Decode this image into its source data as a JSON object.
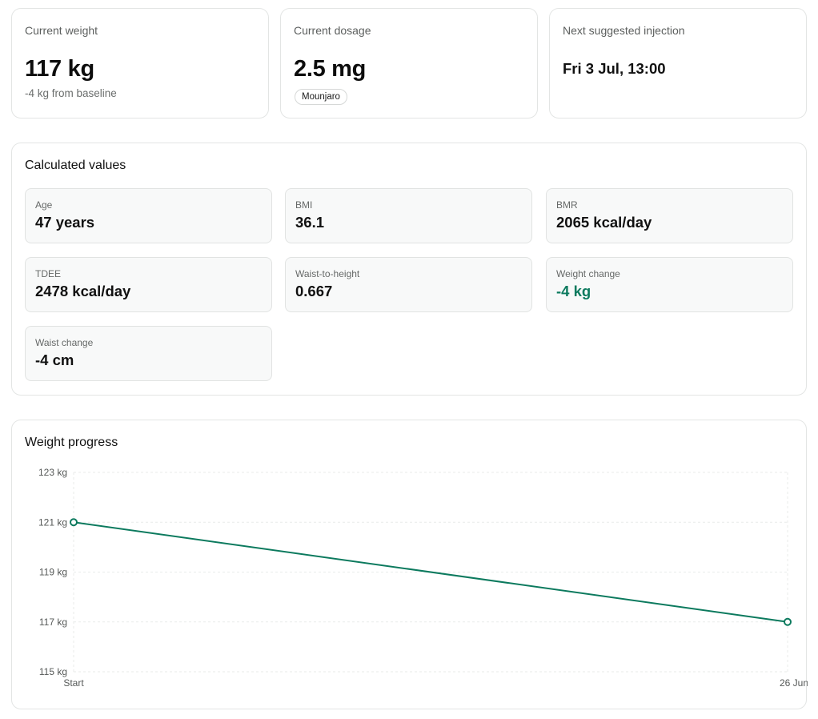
{
  "stats": {
    "weight": {
      "label": "Current weight",
      "value": "117 kg",
      "sub": "-4 kg from baseline"
    },
    "dosage": {
      "label": "Current dosage",
      "value": "2.5 mg",
      "badge": "Mounjaro"
    },
    "injection": {
      "label": "Next suggested injection",
      "value": "Fri 3 Jul, 13:00"
    }
  },
  "calculated": {
    "title": "Calculated values",
    "items": [
      {
        "label": "Age",
        "value": "47 years"
      },
      {
        "label": "BMI",
        "value": "36.1"
      },
      {
        "label": "BMR",
        "value": "2065 kcal/day"
      },
      {
        "label": "TDEE",
        "value": "2478 kcal/day"
      },
      {
        "label": "Waist-to-height",
        "value": "0.667"
      },
      {
        "label": "Weight change",
        "value": "-4 kg"
      },
      {
        "label": "Waist change",
        "value": "-4 cm"
      }
    ]
  },
  "progress": {
    "title": "Weight progress"
  },
  "colors": {
    "accent": "#0c7a5e",
    "border": "#e3e5e4",
    "grid": "#e9ebea"
  },
  "chart_data": {
    "type": "line",
    "title": "Weight progress",
    "x": [
      "Start",
      "26 Jun"
    ],
    "series": [
      {
        "values": [
          121,
          117
        ]
      }
    ],
    "xlabel": "",
    "ylabel": "",
    "ylim": [
      115,
      123
    ],
    "yticks": [
      123,
      121,
      119,
      117,
      115
    ],
    "ytick_labels": [
      "123 kg",
      "121 kg",
      "119 kg",
      "117 kg",
      "115 kg"
    ],
    "grid": true,
    "legend": "none"
  }
}
